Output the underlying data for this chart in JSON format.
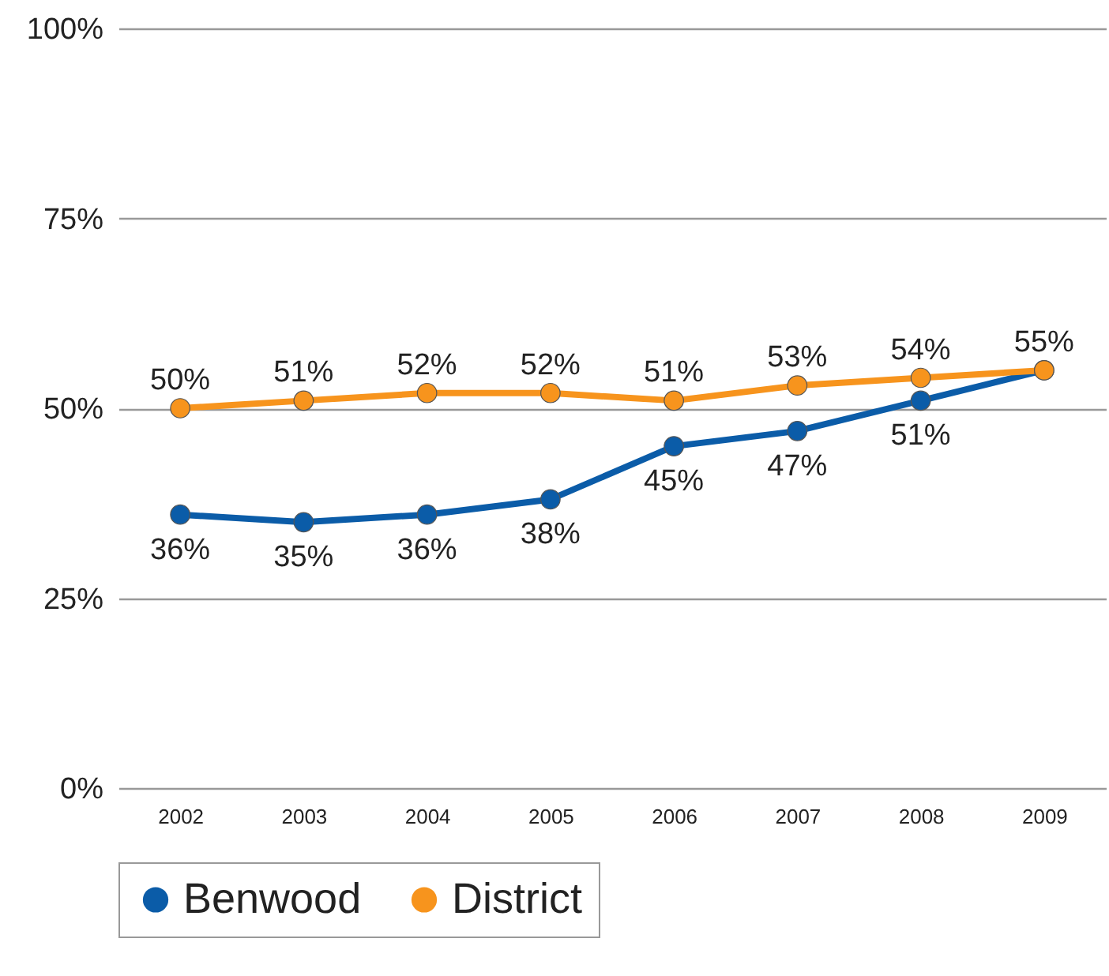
{
  "chart_data": {
    "type": "line",
    "categories": [
      "2002",
      "2003",
      "2004",
      "2005",
      "2006",
      "2007",
      "2008",
      "2009"
    ],
    "series": [
      {
        "name": "Benwood",
        "color": "#0b5ca8",
        "values": [
          36,
          35,
          36,
          38,
          45,
          47,
          51,
          55
        ],
        "value_labels": [
          "36%",
          "35%",
          "36%",
          "38%",
          "45%",
          "47%",
          "51%",
          null
        ]
      },
      {
        "name": "District",
        "color": "#f7941d",
        "values": [
          50,
          51,
          52,
          52,
          51,
          53,
          54,
          55
        ],
        "value_labels": [
          "50%",
          "51%",
          "52%",
          "52%",
          "51%",
          "53%",
          "54%",
          "55%"
        ]
      }
    ],
    "ylim": [
      0,
      100
    ],
    "yticks": [
      {
        "value": 0,
        "label": "0%"
      },
      {
        "value": 25,
        "label": "25%"
      },
      {
        "value": 50,
        "label": "50%"
      },
      {
        "value": 75,
        "label": "75%"
      },
      {
        "value": 100,
        "label": "100%"
      }
    ],
    "grid": "y",
    "legend": "bottom",
    "marker": "circle",
    "line_style": "solid"
  }
}
